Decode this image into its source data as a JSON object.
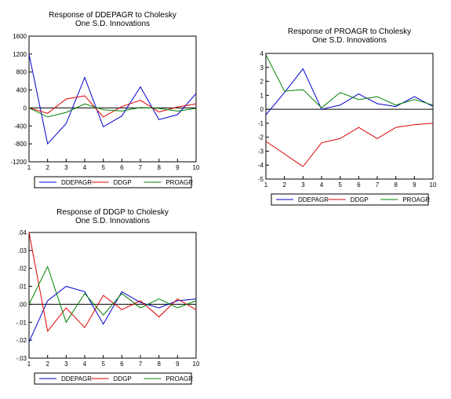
{
  "colors": {
    "DDEPAGR": "#0000cc",
    "DDGP": "#dd0000",
    "PROAGR": "#008000"
  },
  "chart_data": [
    {
      "type": "line",
      "title": "Response of DDEPAGR to Cholesky",
      "subtitle": "One S.D. Innovations",
      "x": [
        1,
        2,
        3,
        4,
        5,
        6,
        7,
        8,
        9,
        10
      ],
      "xticks": [
        "1",
        "2",
        "3",
        "4",
        "5",
        "6",
        "7",
        "8",
        "9",
        "10"
      ],
      "ylim": [
        -1200,
        1600
      ],
      "yticks": [
        -1200,
        -800,
        -400,
        0,
        400,
        800,
        1200,
        1600
      ],
      "ytick_labels": [
        "-1200",
        "-800",
        "-400",
        "0",
        "400",
        "800",
        "1200",
        "1600"
      ],
      "legend": "bottom",
      "series": [
        {
          "name": "DDEPAGR",
          "values": [
            1200,
            -800,
            -350,
            680,
            -420,
            -180,
            470,
            -260,
            -150,
            320
          ]
        },
        {
          "name": "DDGP",
          "values": [
            0,
            -120,
            200,
            270,
            -200,
            30,
            170,
            -90,
            20,
            90
          ]
        },
        {
          "name": "PROAGR",
          "values": [
            0,
            -200,
            -100,
            90,
            -40,
            -70,
            10,
            -10,
            -70,
            -10
          ]
        }
      ]
    },
    {
      "type": "line",
      "title": "Response of PROAGR to Cholesky",
      "subtitle": "One S.D. Innovations",
      "x": [
        1,
        2,
        3,
        4,
        5,
        6,
        7,
        8,
        9,
        10
      ],
      "xticks": [
        "1",
        "2",
        "3",
        "4",
        "5",
        "6",
        "7",
        "8",
        "9",
        "10"
      ],
      "ylim": [
        -5,
        4
      ],
      "yticks": [
        -5,
        -4,
        -3,
        -2,
        -1,
        0,
        1,
        2,
        3,
        4
      ],
      "ytick_labels": [
        "-5",
        "-4",
        "-3",
        "-2",
        "-1",
        "0",
        "1",
        "2",
        "3",
        "4"
      ],
      "legend": "bottom",
      "series": [
        {
          "name": "DDEPAGR",
          "values": [
            -0.4,
            1.2,
            2.9,
            0.0,
            0.3,
            1.1,
            0.4,
            0.2,
            0.9,
            0.2
          ]
        },
        {
          "name": "DDGP",
          "values": [
            -2.3,
            -3.2,
            -4.1,
            -2.4,
            -2.1,
            -1.3,
            -2.1,
            -1.3,
            -1.1,
            -1.0
          ]
        },
        {
          "name": "PROAGR",
          "values": [
            3.9,
            1.3,
            1.4,
            0.1,
            1.2,
            0.7,
            0.9,
            0.3,
            0.7,
            0.3
          ]
        }
      ]
    },
    {
      "type": "line",
      "title": "Response of DDGP to Cholesky",
      "subtitle": "One S.D. Innovations",
      "x": [
        1,
        2,
        3,
        4,
        5,
        6,
        7,
        8,
        9,
        10
      ],
      "xticks": [
        "1",
        "2",
        "3",
        "4",
        "5",
        "6",
        "7",
        "8",
        "9",
        "10"
      ],
      "ylim": [
        -0.03,
        0.04
      ],
      "yticks": [
        -0.03,
        -0.02,
        -0.01,
        0,
        0.01,
        0.02,
        0.03,
        0.04
      ],
      "ytick_labels": [
        "-.03",
        "-.02",
        "-.01",
        ".00",
        ".01",
        ".02",
        ".03",
        ".04"
      ],
      "legend": "bottom",
      "series": [
        {
          "name": "DDEPAGR",
          "values": [
            -0.021,
            0.002,
            0.01,
            0.007,
            -0.011,
            0.007,
            0.001,
            -0.002,
            0.002,
            0.003
          ]
        },
        {
          "name": "DDGP",
          "values": [
            0.04,
            -0.015,
            -0.002,
            -0.013,
            0.005,
            -0.003,
            0.002,
            -0.007,
            0.003,
            -0.003
          ]
        },
        {
          "name": "PROAGR",
          "values": [
            0.0,
            0.021,
            -0.01,
            0.006,
            -0.006,
            0.006,
            -0.002,
            0.003,
            -0.002,
            0.002
          ]
        }
      ]
    }
  ]
}
